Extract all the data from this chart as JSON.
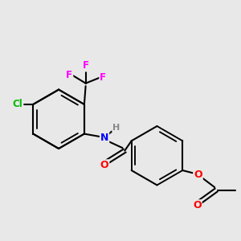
{
  "background_color": "#e8e8e8",
  "atom_colors": {
    "F": "#ff00ff",
    "Cl": "#00bb00",
    "N": "#0000ff",
    "O": "#ff0000",
    "H": "#888888",
    "C": "#000000"
  },
  "bond_color": "#000000",
  "bond_width": 1.5,
  "figsize": [
    3.0,
    3.0
  ],
  "dpi": 100
}
